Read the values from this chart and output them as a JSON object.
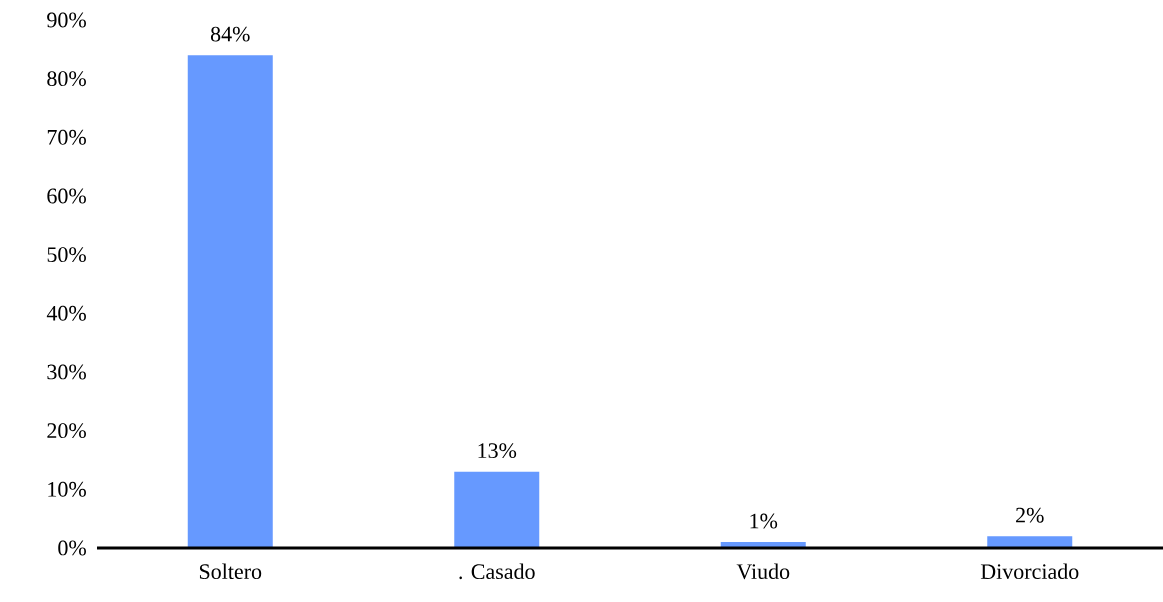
{
  "chart_data": {
    "type": "bar",
    "categories": [
      "Soltero",
      ". Casado",
      "Viudo",
      "Divorciado"
    ],
    "values": [
      84,
      13,
      1,
      2
    ],
    "value_labels": [
      "84%",
      "13%",
      "1%",
      "2%"
    ],
    "color": "#6699ff",
    "ylim": [
      0,
      90
    ],
    "yticks": [
      {
        "value": 0,
        "label": "0%"
      },
      {
        "value": 10,
        "label": "10%"
      },
      {
        "value": 20,
        "label": "20%"
      },
      {
        "value": 30,
        "label": "30%"
      },
      {
        "value": 40,
        "label": "40%"
      },
      {
        "value": 50,
        "label": "50%"
      },
      {
        "value": 60,
        "label": "60%"
      },
      {
        "value": 70,
        "label": "70%"
      },
      {
        "value": 80,
        "label": "80%"
      },
      {
        "value": 90,
        "label": "90%"
      }
    ]
  }
}
